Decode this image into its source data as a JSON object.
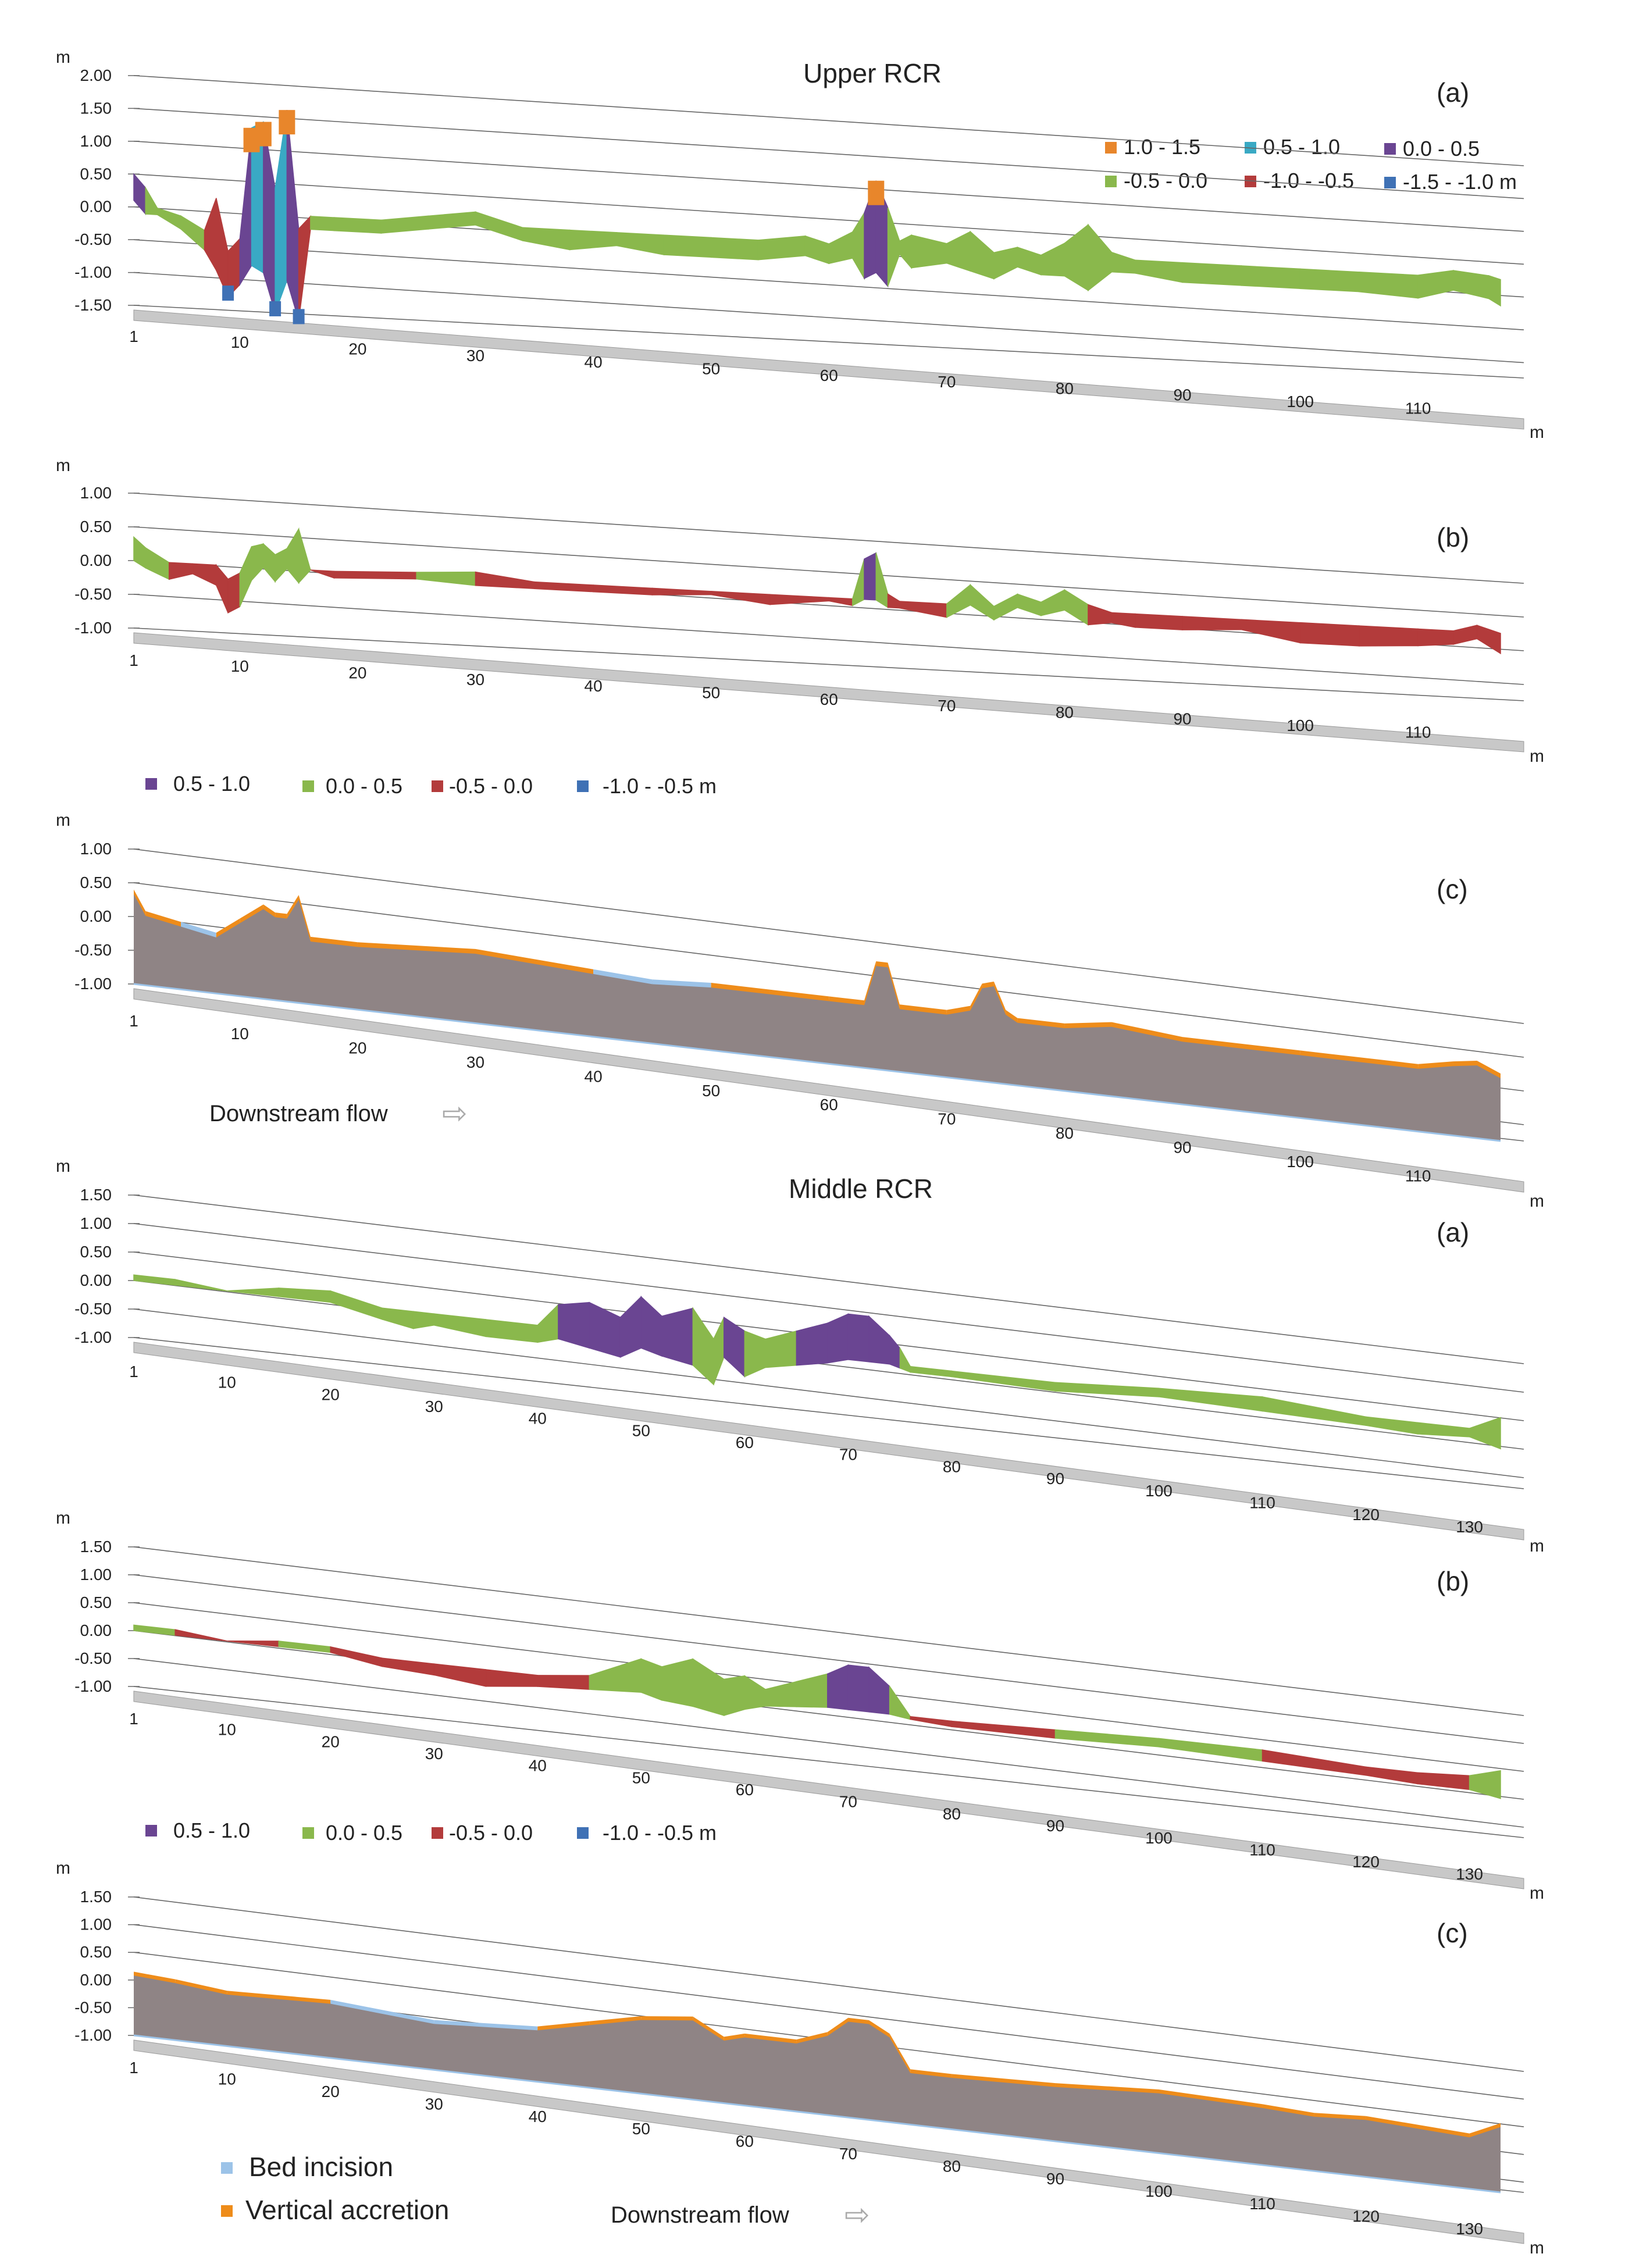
{
  "colors": {
    "c_1_0_1_5": "#e8862b",
    "c_0_5_1_0": "#39a9c4",
    "c_0_0_0_5": "#6a4592",
    "c_m0_5_0_0": "#8ab84c",
    "c_m1_0_m0_5": "#b33b3b",
    "c_m1_5_m1_0": "#3f71b5",
    "grey_fill": "#8f8485",
    "incision": "#9cc3e8",
    "accretion": "#ee8c1a",
    "grid": "#666666",
    "floor": "#c8c8c8"
  },
  "texts": {
    "unit_m": "m",
    "upper_title": "Upper RCR",
    "middle_title": "Middle RCR",
    "tag_a": "(a)",
    "tag_b": "(b)",
    "tag_c": "(c)",
    "downstream": "Downstream flow",
    "arrow": "⇨"
  },
  "legends": {
    "six_class": [
      {
        "label": "1.0 - 1.5",
        "color": "#e8862b"
      },
      {
        "label": "0.5 - 1.0",
        "color": "#39a9c4"
      },
      {
        "label": "0.0 - 0.5",
        "color": "#6a4592"
      },
      {
        "label": "-0.5 - 0.0",
        "color": "#8ab84c"
      },
      {
        "label": "-1.0 - -0.5",
        "color": "#b33b3b"
      },
      {
        "label": "-1.5 - -1.0 m",
        "color": "#3f71b5"
      }
    ],
    "four_class": [
      {
        "label": "0.5 - 1.0",
        "color": "#6a4592"
      },
      {
        "label": "0.0 - 0.5",
        "color": "#8ab84c"
      },
      {
        "label": "-0.5 - 0.0",
        "color": "#b33b3b"
      },
      {
        "label": "-1.0 - -0.5 m",
        "color": "#3f71b5"
      }
    ],
    "incision_accretion": [
      {
        "label": "Bed incision",
        "color": "#9cc3e8"
      },
      {
        "label": "Vertical accretion",
        "color": "#ee8c1a"
      }
    ]
  },
  "chart_data": [
    {
      "type": "area",
      "title": "Upper RCR",
      "panel": "(a)",
      "ylabel": "m",
      "xlabel": "m",
      "ylim": [
        -1.5,
        2.0
      ],
      "ytick_labels": [
        "2.00",
        "1.50",
        "1.00",
        "0.50",
        "0.00",
        "-0.50",
        "-1.00",
        "-1.50"
      ],
      "xlim": [
        1,
        117
      ],
      "xtick_labels": [
        "1",
        "10",
        "20",
        "30",
        "40",
        "50",
        "60",
        "70",
        "80",
        "90",
        "100",
        "110"
      ],
      "legend": [
        "1.0 - 1.5",
        "0.5 - 1.0",
        "0.0 - 0.5",
        "-0.5 - 0.0",
        "-1.0 - -0.5",
        "-1.5 - -1.0 m"
      ],
      "x": [
        1,
        2,
        3,
        5,
        7,
        8,
        9,
        10,
        11,
        12,
        13,
        14,
        15,
        16,
        18,
        22,
        26,
        30,
        34,
        38,
        42,
        46,
        50,
        54,
        58,
        60,
        62,
        63,
        64,
        65,
        66,
        67,
        70,
        72,
        74,
        76,
        78,
        80,
        82,
        84,
        86,
        90,
        95,
        100,
        105,
        110,
        113,
        116,
        117
      ],
      "series": [
        {
          "name": "upper profile",
          "values": [
            0.5,
            0.3,
            0.0,
            -0.1,
            -0.3,
            0.2,
            -0.6,
            -0.4,
            1.3,
            1.4,
            0.4,
            1.6,
            -0.2,
            0.0,
            0.0,
            0.0,
            0.1,
            0.2,
            0.0,
            0.0,
            0.0,
            0.0,
            0.0,
            0.0,
            0.1,
            0.0,
            0.2,
            0.5,
            1.0,
            0.6,
            0.1,
            0.2,
            0.1,
            0.3,
            0.0,
            0.1,
            0.0,
            0.2,
            0.5,
            0.1,
            0.0,
            0.0,
            0.0,
            0.0,
            0.0,
            0.0,
            0.1,
            0.05,
            0.0
          ]
        },
        {
          "name": "lower profile",
          "values": [
            0.1,
            -0.1,
            -0.1,
            -0.3,
            -0.6,
            -0.9,
            -1.3,
            -1.1,
            -0.8,
            -0.9,
            -1.5,
            -1.0,
            -1.6,
            -0.2,
            -0.2,
            -0.2,
            -0.1,
            0.0,
            -0.2,
            -0.3,
            -0.2,
            -0.3,
            -0.3,
            -0.3,
            -0.2,
            -0.3,
            -0.2,
            -0.5,
            -0.4,
            -0.6,
            -0.1,
            -0.3,
            -0.2,
            -0.3,
            -0.4,
            -0.2,
            -0.3,
            -0.3,
            -0.5,
            -0.2,
            -0.2,
            -0.3,
            -0.3,
            -0.3,
            -0.3,
            -0.35,
            -0.2,
            -0.3,
            -0.4
          ]
        }
      ]
    },
    {
      "type": "area",
      "title": "Upper RCR",
      "panel": "(b)",
      "ylabel": "m",
      "xlabel": "m",
      "ylim": [
        -1.0,
        1.0
      ],
      "ytick_labels": [
        "1.00",
        "0.50",
        "0.00",
        "-0.50",
        "-1.00"
      ],
      "xlim": [
        1,
        117
      ],
      "xtick_labels": [
        "1",
        "10",
        "20",
        "30",
        "40",
        "50",
        "60",
        "70",
        "80",
        "90",
        "100",
        "110"
      ],
      "legend": [
        "0.5 - 1.0",
        "0.0 - 0.5",
        "-0.5 - 0.0",
        "-1.0 - -0.5 m"
      ],
      "x": [
        1,
        2,
        4,
        6,
        8,
        9,
        10,
        11,
        12,
        13,
        14,
        15,
        16,
        18,
        25,
        30,
        35,
        40,
        45,
        50,
        55,
        60,
        62,
        63,
        64,
        65,
        66,
        70,
        72,
        74,
        76,
        78,
        80,
        82,
        84,
        86,
        90,
        95,
        100,
        105,
        110,
        113,
        115,
        117
      ],
      "series": [
        {
          "name": "upper profile",
          "values": [
            0.35,
            0.2,
            0.0,
            0.0,
            0.0,
            -0.2,
            -0.1,
            0.3,
            0.35,
            0.2,
            0.3,
            0.6,
            0.0,
            0.0,
            0.05,
            0.1,
            0.0,
            0.0,
            0.0,
            0.0,
            0.0,
            0.0,
            0.0,
            0.6,
            0.7,
            0.1,
            0.0,
            0.0,
            0.3,
            0.0,
            0.2,
            0.1,
            0.3,
            0.1,
            0.0,
            0.0,
            0.0,
            0.0,
            0.0,
            0.0,
            0.0,
            0.0,
            0.1,
            0.0
          ]
        },
        {
          "name": "lower profile",
          "values": [
            0.0,
            -0.1,
            -0.25,
            -0.15,
            -0.3,
            -0.7,
            -0.6,
            -0.2,
            0.0,
            -0.2,
            0.0,
            -0.2,
            0.0,
            -0.1,
            -0.05,
            -0.1,
            -0.1,
            -0.1,
            -0.1,
            -0.05,
            -0.15,
            -0.05,
            -0.1,
            0.0,
            0.0,
            -0.1,
            -0.1,
            -0.2,
            0.0,
            -0.2,
            0.0,
            -0.1,
            0.0,
            -0.2,
            -0.15,
            -0.2,
            -0.2,
            -0.15,
            -0.3,
            -0.3,
            -0.25,
            -0.2,
            -0.1,
            -0.3
          ]
        }
      ]
    },
    {
      "type": "area",
      "title": "Upper RCR",
      "panel": "(c)",
      "ylabel": "m",
      "xlabel": "m",
      "ylim": [
        -1.0,
        1.0
      ],
      "ytick_labels": [
        "1.00",
        "0.50",
        "0.00",
        "-0.50",
        "-1.00"
      ],
      "xlim": [
        1,
        117
      ],
      "xtick_labels": [
        "1",
        "10",
        "20",
        "30",
        "40",
        "50",
        "60",
        "70",
        "80",
        "90",
        "100",
        "110"
      ],
      "legend": [
        "Bed incision",
        "Vertical accretion"
      ],
      "x": [
        1,
        2,
        5,
        8,
        10,
        12,
        13,
        14,
        15,
        16,
        20,
        30,
        40,
        45,
        50,
        55,
        60,
        63,
        64,
        65,
        66,
        70,
        72,
        73,
        74,
        75,
        76,
        80,
        84,
        90,
        100,
        110,
        113,
        115,
        117
      ],
      "series": [
        {
          "name": "surface",
          "values": [
            0.4,
            0.1,
            0.0,
            -0.1,
            0.15,
            0.4,
            0.3,
            0.3,
            0.6,
            0.0,
            0.0,
            0.1,
            0.0,
            -0.05,
            0.0,
            0.0,
            0.0,
            0.0,
            0.6,
            0.6,
            0.0,
            0.0,
            0.1,
            0.45,
            0.5,
            0.1,
            0.0,
            0.0,
            0.1,
            0.0,
            0.0,
            0.0,
            0.1,
            0.15,
            0.0
          ]
        }
      ]
    },
    {
      "type": "area",
      "title": "Middle RCR",
      "panel": "(a)",
      "ylabel": "m",
      "xlabel": "m",
      "ylim": [
        -1.0,
        1.5
      ],
      "ytick_labels": [
        "1.50",
        "1.00",
        "0.50",
        "0.00",
        "-0.50",
        "-1.00"
      ],
      "xlim": [
        1,
        133
      ],
      "xtick_labels": [
        "1",
        "10",
        "20",
        "30",
        "40",
        "50",
        "60",
        "70",
        "80",
        "90",
        "100",
        "110",
        "120",
        "130"
      ],
      "legend": [
        "1.0 - 1.5",
        "0.5 - 1.0",
        "0.0 - 0.5",
        "-0.5 - 0.0",
        "-1.0 - -0.5",
        "-1.5 - -1.0 m"
      ],
      "x": [
        1,
        5,
        10,
        15,
        20,
        25,
        28,
        30,
        35,
        40,
        42,
        45,
        48,
        50,
        52,
        55,
        57,
        58,
        60,
        62,
        65,
        68,
        70,
        72,
        74,
        75,
        76,
        80,
        90,
        100,
        110,
        120,
        125,
        130,
        133
      ],
      "series": [
        {
          "name": "upper profile",
          "values": [
            0.1,
            0.1,
            0.0,
            0.15,
            0.2,
            0.0,
            0.0,
            0.0,
            0.0,
            0.0,
            0.4,
            0.5,
            0.3,
            0.7,
            0.4,
            0.6,
            0.1,
            0.5,
            0.3,
            0.2,
            0.4,
            0.6,
            0.8,
            0.8,
            0.5,
            0.3,
            0.0,
            0.0,
            0.0,
            0.1,
            0.15,
            0.0,
            0.0,
            0.0,
            0.25
          ]
        },
        {
          "name": "lower profile",
          "values": [
            0.0,
            0.0,
            0.0,
            0.0,
            0.0,
            -0.2,
            -0.3,
            -0.2,
            -0.3,
            -0.3,
            -0.2,
            -0.3,
            -0.4,
            -0.2,
            -0.3,
            -0.4,
            -0.7,
            -0.2,
            -0.5,
            -0.3,
            -0.2,
            -0.1,
            0.0,
            0.0,
            0.0,
            -0.05,
            -0.1,
            -0.1,
            -0.15,
            -0.05,
            -0.1,
            -0.15,
            -0.2,
            -0.15,
            -0.3
          ]
        }
      ]
    },
    {
      "type": "area",
      "title": "Middle RCR",
      "panel": "(b)",
      "ylabel": "m",
      "xlabel": "m",
      "ylim": [
        -1.0,
        1.5
      ],
      "ytick_labels": [
        "1.50",
        "1.00",
        "0.50",
        "0.00",
        "-0.50",
        "-1.00"
      ],
      "xlim": [
        1,
        133
      ],
      "xtick_labels": [
        "1",
        "10",
        "20",
        "30",
        "40",
        "50",
        "60",
        "70",
        "80",
        "90",
        "100",
        "110",
        "120",
        "130"
      ],
      "legend": [
        "0.5 - 1.0",
        "0.0 - 0.5",
        "-0.5 - 0.0",
        "-1.0 - -0.5 m"
      ],
      "x": [
        1,
        5,
        10,
        15,
        20,
        25,
        30,
        35,
        40,
        45,
        50,
        52,
        55,
        58,
        60,
        62,
        65,
        68,
        70,
        72,
        74,
        76,
        80,
        90,
        100,
        110,
        120,
        125,
        130,
        133
      ],
      "series": [
        {
          "name": "upper profile",
          "values": [
            0.1,
            0.1,
            0.0,
            0.1,
            0.1,
            0.0,
            0.0,
            0.0,
            0.0,
            0.1,
            0.5,
            0.4,
            0.6,
            0.3,
            0.4,
            0.2,
            0.4,
            0.6,
            0.8,
            0.8,
            0.5,
            0.0,
            0.0,
            0.05,
            0.1,
            0.1,
            0.0,
            0.0,
            0.05,
            0.2
          ]
        },
        {
          "name": "lower profile",
          "values": [
            0.0,
            0.0,
            0.0,
            0.0,
            0.0,
            -0.15,
            -0.2,
            -0.3,
            -0.2,
            -0.15,
            -0.1,
            -0.2,
            -0.25,
            -0.35,
            -0.2,
            -0.1,
            -0.05,
            0.0,
            0.0,
            0.0,
            0.0,
            -0.05,
            -0.1,
            -0.1,
            -0.05,
            -0.1,
            -0.15,
            -0.2,
            -0.2,
            -0.3
          ]
        }
      ]
    },
    {
      "type": "area",
      "title": "Middle RCR",
      "panel": "(c)",
      "ylabel": "m",
      "xlabel": "m",
      "ylim": [
        -1.0,
        1.5
      ],
      "ytick_labels": [
        "1.50",
        "1.00",
        "0.50",
        "0.00",
        "-0.50",
        "-1.00"
      ],
      "xlim": [
        1,
        133
      ],
      "xtick_labels": [
        "1",
        "10",
        "20",
        "30",
        "40",
        "50",
        "60",
        "70",
        "80",
        "90",
        "100",
        "110",
        "120",
        "130"
      ],
      "legend": [
        "Bed incision",
        "Vertical accretion"
      ],
      "x": [
        1,
        5,
        10,
        20,
        30,
        40,
        45,
        50,
        55,
        58,
        60,
        65,
        68,
        70,
        72,
        74,
        76,
        80,
        90,
        100,
        110,
        115,
        120,
        130,
        133
      ],
      "series": [
        {
          "name": "surface",
          "values": [
            0.15,
            0.1,
            0.0,
            0.05,
            -0.1,
            0.0,
            0.2,
            0.4,
            0.5,
            0.2,
            0.3,
            0.3,
            0.5,
            0.8,
            0.8,
            0.6,
            0.0,
            0.0,
            0.05,
            0.15,
            0.1,
            0.05,
            0.1,
            0.0,
            0.25
          ]
        }
      ]
    }
  ]
}
